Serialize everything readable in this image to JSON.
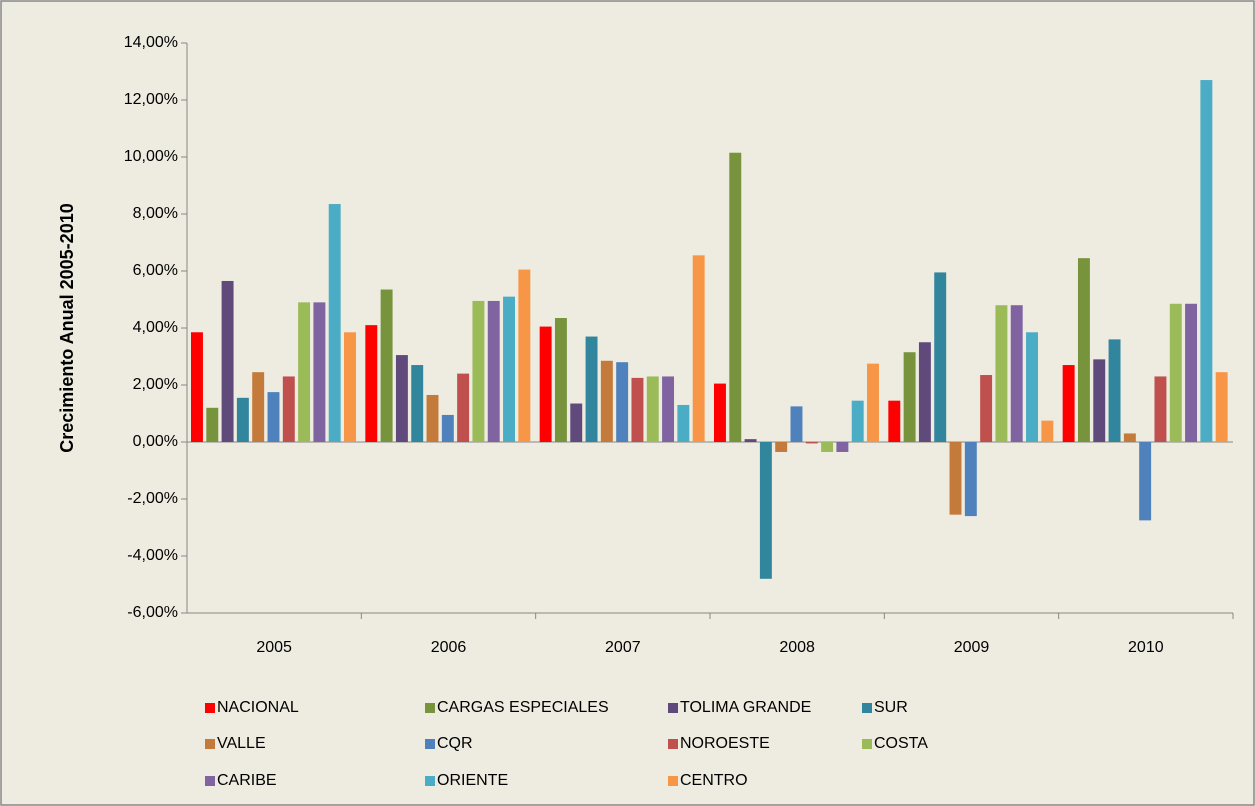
{
  "chart_data": {
    "type": "bar",
    "y_label": "Crecimiento Anual 2005-2010",
    "categories": [
      "2005",
      "2006",
      "2007",
      "2008",
      "2009",
      "2010"
    ],
    "ylim": [
      -6,
      14
    ],
    "yticks": [
      {
        "value": 14,
        "label": "14,00%"
      },
      {
        "value": 12,
        "label": "12,00%"
      },
      {
        "value": 10,
        "label": "10,00%"
      },
      {
        "value": 8,
        "label": "8,00%"
      },
      {
        "value": 6,
        "label": "6,00%"
      },
      {
        "value": 4,
        "label": "4,00%"
      },
      {
        "value": 2,
        "label": "2,00%"
      },
      {
        "value": 0,
        "label": "0,00%"
      },
      {
        "value": -2,
        "label": "-2,00%"
      },
      {
        "value": -4,
        "label": "-4,00%"
      },
      {
        "value": -6,
        "label": "-6,00%"
      }
    ],
    "grid": false,
    "series": [
      {
        "name": "NACIONAL",
        "color": "#ff0000",
        "values": [
          3.85,
          4.1,
          4.05,
          2.05,
          1.45,
          2.7
        ]
      },
      {
        "name": "CARGAS ESPECIALES",
        "color": "#77933c",
        "values": [
          1.2,
          5.35,
          4.35,
          10.15,
          3.15,
          6.45
        ]
      },
      {
        "name": "TOLIMA GRANDE",
        "color": "#604a7b",
        "values": [
          5.65,
          3.05,
          1.35,
          0.1,
          3.5,
          2.9
        ]
      },
      {
        "name": "SUR",
        "color": "#31859c",
        "values": [
          1.55,
          2.7,
          3.7,
          -4.8,
          5.95,
          3.6
        ]
      },
      {
        "name": "VALLE",
        "color": "#c47a3a",
        "values": [
          2.45,
          1.65,
          2.85,
          -0.35,
          -2.55,
          0.3
        ]
      },
      {
        "name": "CQR",
        "color": "#4f81bd",
        "values": [
          1.75,
          0.95,
          2.8,
          1.25,
          -2.6,
          -2.75
        ]
      },
      {
        "name": "NOROESTE",
        "color": "#c0504d",
        "values": [
          2.3,
          2.4,
          2.25,
          -0.05,
          2.35,
          2.3
        ]
      },
      {
        "name": "COSTA",
        "color": "#9bbb59",
        "values": [
          4.9,
          4.95,
          2.3,
          -0.35,
          4.8,
          4.85
        ]
      },
      {
        "name": "CARIBE",
        "color": "#8064a2",
        "values": [
          4.9,
          4.95,
          2.3,
          -0.35,
          4.8,
          4.85
        ]
      },
      {
        "name": "ORIENTE",
        "color": "#4bacc6",
        "values": [
          8.35,
          5.1,
          1.3,
          1.45,
          3.85,
          12.7
        ]
      },
      {
        "name": "CENTRO",
        "color": "#f79646",
        "values": [
          3.85,
          6.05,
          6.55,
          2.75,
          0.75,
          2.45
        ]
      }
    ]
  }
}
